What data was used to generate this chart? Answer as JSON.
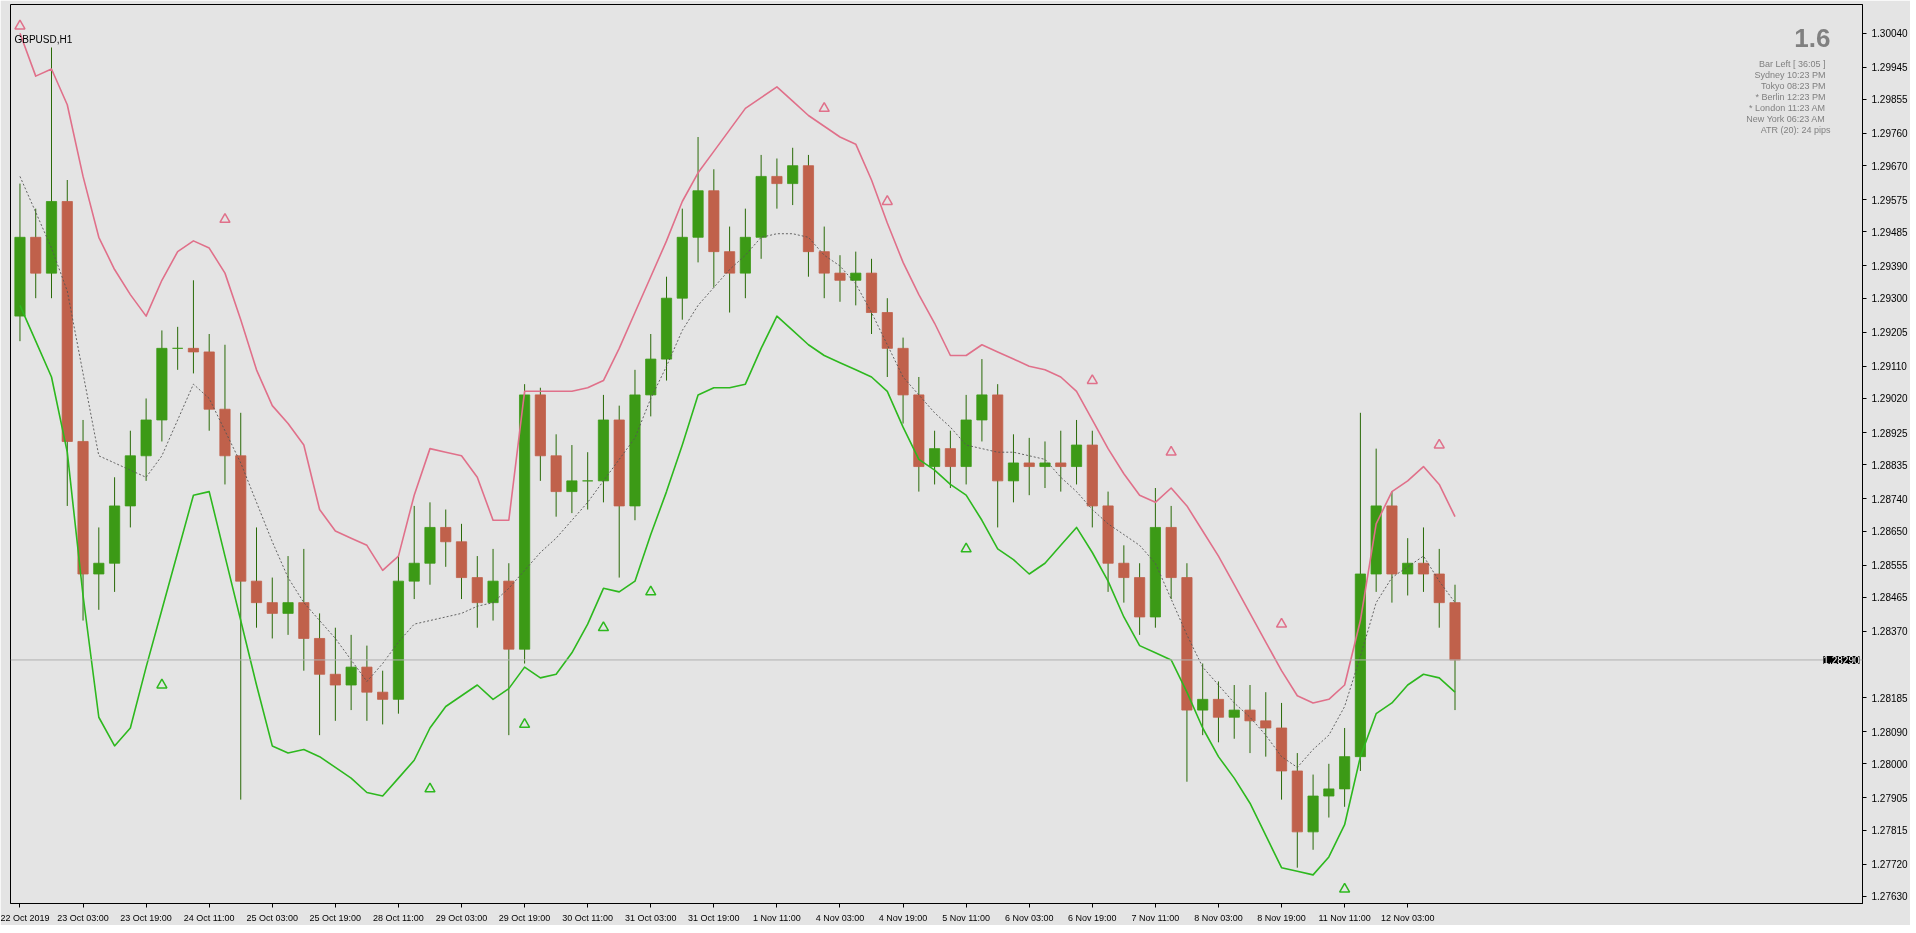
{
  "chart_data": {
    "type": "candlestick",
    "title": "GBPUSD,H1",
    "annotations": [
      "1.6",
      "Bar Left   [ 36:05 ]",
      "Sydney   10:23 PM",
      "Tokyo   08:23 PM",
      "* Berlin   12:23 PM",
      "* London   11:23 AM",
      "New York   06:23 AM",
      "ATR (20): 24 pips"
    ],
    "categories": [
      "22 Oct 2019",
      null,
      null,
      null,
      "23 Oct 03:00",
      null,
      null,
      null,
      "23 Oct 19:00",
      null,
      null,
      null,
      "24 Oct 11:00",
      null,
      null,
      null,
      "25 Oct 03:00",
      null,
      null,
      null,
      "25 Oct 19:00",
      null,
      null,
      null,
      "28 Oct 11:00",
      null,
      null,
      null,
      "29 Oct 03:00",
      null,
      null,
      null,
      "29 Oct 19:00",
      null,
      null,
      null,
      "30 Oct 11:00",
      null,
      null,
      null,
      "31 Oct 03:00",
      null,
      null,
      null,
      "31 Oct 19:00",
      null,
      null,
      null,
      "1 Nov 11:00",
      null,
      null,
      null,
      "4 Nov 03:00",
      null,
      null,
      null,
      "4 Nov 19:00",
      null,
      null,
      null,
      "5 Nov 11:00",
      null,
      null,
      null,
      "6 Nov 03:00",
      null,
      null,
      null,
      "6 Nov 19:00",
      null,
      null,
      null,
      "7 Nov 11:00",
      null,
      null,
      null,
      "8 Nov 03:00",
      null,
      null,
      null,
      "8 Nov 19:00",
      null,
      null,
      null,
      "11 Nov 11:00",
      null,
      null,
      null,
      "12 Nov 03:00",
      null,
      null,
      null
    ],
    "ohlc": [
      [
        1.2925,
        1.2962,
        1.2918,
        1.2947
      ],
      [
        1.2947,
        1.2955,
        1.293,
        1.2937
      ],
      [
        1.2937,
        1.3,
        1.293,
        1.2957
      ],
      [
        1.2957,
        1.2963,
        1.2872,
        1.289
      ],
      [
        1.289,
        1.2896,
        1.284,
        1.2853
      ],
      [
        1.2853,
        1.2866,
        1.2843,
        1.2856
      ],
      [
        1.2856,
        1.288,
        1.2848,
        1.2872
      ],
      [
        1.2872,
        1.2893,
        1.2866,
        1.2886
      ],
      [
        1.2886,
        1.2902,
        1.2879,
        1.2896
      ],
      [
        1.2896,
        1.2921,
        1.289,
        1.2916
      ],
      [
        1.2916,
        1.2922,
        1.291,
        1.2916
      ],
      [
        1.2916,
        1.2935,
        1.2909,
        1.2915
      ],
      [
        1.2915,
        1.292,
        1.2893,
        1.2899
      ],
      [
        1.2899,
        1.2917,
        1.2878,
        1.2886
      ],
      [
        1.2886,
        1.2898,
        1.279,
        1.2851
      ],
      [
        1.2851,
        1.2866,
        1.2838,
        1.2845
      ],
      [
        1.2845,
        1.2852,
        1.2835,
        1.2842
      ],
      [
        1.2842,
        1.2858,
        1.2836,
        1.2845
      ],
      [
        1.2845,
        1.286,
        1.2826,
        1.2835
      ],
      [
        1.2835,
        1.2842,
        1.2808,
        1.2825
      ],
      [
        1.2825,
        1.2838,
        1.2812,
        1.2822
      ],
      [
        1.2822,
        1.2836,
        1.2815,
        1.2827
      ],
      [
        1.2827,
        1.2833,
        1.2812,
        1.282
      ],
      [
        1.282,
        1.2826,
        1.2811,
        1.2818
      ],
      [
        1.2818,
        1.2858,
        1.2814,
        1.2851
      ],
      [
        1.2851,
        1.2872,
        1.2846,
        1.2856
      ],
      [
        1.2856,
        1.2873,
        1.285,
        1.2866
      ],
      [
        1.2866,
        1.2871,
        1.2855,
        1.2862
      ],
      [
        1.2862,
        1.2867,
        1.2846,
        1.2852
      ],
      [
        1.2852,
        1.2858,
        1.2838,
        1.2845
      ],
      [
        1.2845,
        1.286,
        1.284,
        1.2851
      ],
      [
        1.2851,
        1.2856,
        1.2808,
        1.2832
      ],
      [
        1.2832,
        1.2906,
        1.2828,
        1.2903
      ],
      [
        1.2903,
        1.2905,
        1.2879,
        1.2886
      ],
      [
        1.2886,
        1.2892,
        1.2869,
        1.2876
      ],
      [
        1.2876,
        1.2889,
        1.287,
        1.2879
      ],
      [
        1.2879,
        1.2887,
        1.2871,
        1.2879
      ],
      [
        1.2879,
        1.2903,
        1.2873,
        1.2896
      ],
      [
        1.2896,
        1.29,
        1.2852,
        1.2872
      ],
      [
        1.2872,
        1.291,
        1.2868,
        1.2903
      ],
      [
        1.2903,
        1.292,
        1.2897,
        1.2913
      ],
      [
        1.2913,
        1.2936,
        1.2907,
        1.293
      ],
      [
        1.293,
        1.2955,
        1.2924,
        1.2947
      ],
      [
        1.2947,
        1.2975,
        1.294,
        1.296
      ],
      [
        1.296,
        1.2966,
        1.2933,
        1.2943
      ],
      [
        1.2943,
        1.295,
        1.2926,
        1.2937
      ],
      [
        1.2937,
        1.2955,
        1.293,
        1.2947
      ],
      [
        1.2947,
        1.297,
        1.2941,
        1.2964
      ],
      [
        1.2964,
        1.2969,
        1.2955,
        1.2962
      ],
      [
        1.2962,
        1.2972,
        1.2956,
        1.2967
      ],
      [
        1.2967,
        1.297,
        1.2936,
        1.2943
      ],
      [
        1.2943,
        1.295,
        1.293,
        1.2937
      ],
      [
        1.2937,
        1.2942,
        1.2929,
        1.2935
      ],
      [
        1.2935,
        1.2943,
        1.2928,
        1.2937
      ],
      [
        1.2937,
        1.2941,
        1.292,
        1.2926
      ],
      [
        1.2926,
        1.293,
        1.2908,
        1.2916
      ],
      [
        1.2916,
        1.2919,
        1.2895,
        1.2903
      ],
      [
        1.2903,
        1.2908,
        1.2876,
        1.2883
      ],
      [
        1.2883,
        1.2893,
        1.2878,
        1.2888
      ],
      [
        1.2888,
        1.2893,
        1.2877,
        1.2883
      ],
      [
        1.2883,
        1.2903,
        1.2878,
        1.2896
      ],
      [
        1.2896,
        1.2913,
        1.289,
        1.2903
      ],
      [
        1.2903,
        1.2906,
        1.2866,
        1.2879
      ],
      [
        1.2879,
        1.2892,
        1.2873,
        1.2884
      ],
      [
        1.2884,
        1.2891,
        1.2875,
        1.2883
      ],
      [
        1.2883,
        1.289,
        1.2877,
        1.2884
      ],
      [
        1.2884,
        1.2893,
        1.2876,
        1.2883
      ],
      [
        1.2883,
        1.2896,
        1.2878,
        1.2889
      ],
      [
        1.2889,
        1.2893,
        1.2866,
        1.2872
      ],
      [
        1.2872,
        1.2876,
        1.2848,
        1.2856
      ],
      [
        1.2856,
        1.2861,
        1.2845,
        1.2852
      ],
      [
        1.2852,
        1.2856,
        1.2836,
        1.2841
      ],
      [
        1.2841,
        1.2877,
        1.2838,
        1.2866
      ],
      [
        1.2866,
        1.2872,
        1.2846,
        1.2852
      ],
      [
        1.2852,
        1.2856,
        1.2795,
        1.2815
      ],
      [
        1.2815,
        1.2828,
        1.2808,
        1.2818
      ],
      [
        1.2818,
        1.2823,
        1.2806,
        1.2813
      ],
      [
        1.2813,
        1.2822,
        1.2807,
        1.2815
      ],
      [
        1.2815,
        1.2822,
        1.2803,
        1.2812
      ],
      [
        1.2812,
        1.282,
        1.2802,
        1.281
      ],
      [
        1.281,
        1.2817,
        1.279,
        1.2798
      ],
      [
        1.2798,
        1.2803,
        1.2771,
        1.2781
      ],
      [
        1.2781,
        1.2797,
        1.2776,
        1.2791
      ],
      [
        1.2791,
        1.28,
        1.2785,
        1.2793
      ],
      [
        1.2793,
        1.281,
        1.2788,
        1.2802
      ],
      [
        1.2802,
        1.2898,
        1.2798,
        1.2853
      ],
      [
        1.2853,
        1.2888,
        1.2848,
        1.2872
      ],
      [
        1.2872,
        1.2876,
        1.2845,
        1.2853
      ],
      [
        1.2853,
        1.2863,
        1.2847,
        1.2856
      ],
      [
        1.2856,
        1.2866,
        1.2848,
        1.2853
      ],
      [
        1.2853,
        1.286,
        1.2838,
        1.2845
      ],
      [
        1.2845,
        1.285,
        1.2815,
        1.2829
      ]
    ],
    "colors": [
      "#3c9a16",
      "#c0614b",
      "#3c9a16",
      "#c0614b",
      "#c0614b",
      "#3c9a16",
      "#3c9a16",
      "#3c9a16",
      "#3c9a16",
      "#3c9a16",
      "#3c9a16",
      "#c0614b",
      "#c0614b",
      "#c0614b",
      "#c0614b",
      "#c0614b",
      "#c0614b",
      "#3c9a16",
      "#c0614b",
      "#c0614b",
      "#c0614b",
      "#3c9a16",
      "#c0614b",
      "#c0614b",
      "#3c9a16",
      "#3c9a16",
      "#3c9a16",
      "#c0614b",
      "#c0614b",
      "#c0614b",
      "#3c9a16",
      "#c0614b",
      "#3c9a16",
      "#c0614b",
      "#c0614b",
      "#3c9a16",
      "#3c9a16",
      "#3c9a16",
      "#c0614b",
      "#3c9a16",
      "#3c9a16",
      "#3c9a16",
      "#3c9a16",
      "#3c9a16",
      "#c0614b",
      "#c0614b",
      "#3c9a16",
      "#3c9a16",
      "#c0614b",
      "#3c9a16",
      "#c0614b",
      "#c0614b",
      "#c0614b",
      "#3c9a16",
      "#c0614b",
      "#c0614b",
      "#c0614b",
      "#c0614b",
      "#3c9a16",
      "#c0614b",
      "#3c9a16",
      "#3c9a16",
      "#c0614b",
      "#3c9a16",
      "#c0614b",
      "#3c9a16",
      "#c0614b",
      "#3c9a16",
      "#c0614b",
      "#c0614b",
      "#c0614b",
      "#c0614b",
      "#3c9a16",
      "#c0614b",
      "#c0614b",
      "#3c9a16",
      "#c0614b",
      "#3c9a16",
      "#c0614b",
      "#c0614b",
      "#c0614b",
      "#c0614b",
      "#3c9a16",
      "#3c9a16",
      "#3c9a16",
      "#3c9a16",
      "#3c9a16",
      "#c0614b",
      "#3c9a16",
      "#c0614b",
      "#c0614b",
      "#c0614b"
    ],
    "series": [
      {
        "type": "line",
        "color": "#e0708a",
        "values": [
          1.3004,
          1.2992,
          1.2994,
          1.2984,
          1.2964,
          1.2947,
          1.2938,
          1.2931,
          1.2925,
          1.2935,
          1.2943,
          1.2946,
          1.2944,
          1.2937,
          1.2924,
          1.291,
          1.29,
          1.2895,
          1.2889,
          1.2871,
          1.2865,
          1.2863,
          1.2861,
          1.2854,
          1.2858,
          1.2875,
          1.2888,
          1.2887,
          1.2886,
          1.288,
          1.2868,
          1.2868,
          1.2904,
          1.2904,
          1.2904,
          1.2904,
          1.2905,
          1.2907,
          1.2916,
          1.2926,
          1.2936,
          1.2946,
          1.2957,
          1.2965,
          1.2971,
          1.2977,
          1.2983,
          1.2986,
          1.2989,
          1.2985,
          1.2981,
          1.2978,
          1.2975,
          1.2973,
          1.2963,
          1.2951,
          1.294,
          1.2931,
          1.2923,
          1.2914,
          1.2914,
          1.2917,
          1.2915,
          1.2913,
          1.2911,
          1.291,
          1.2908,
          1.2904,
          1.2896,
          1.2888,
          1.2881,
          1.2875,
          1.2873,
          1.2877,
          1.2872,
          1.2865,
          1.2858,
          1.285,
          1.2842,
          1.2834,
          1.2826,
          1.2819,
          1.2817,
          1.2818,
          1.2822,
          1.284,
          1.2867,
          1.2876,
          1.2879,
          1.2883,
          1.2878,
          1.2869
        ]
      },
      {
        "type": "line",
        "color": "#2db81e",
        "values": [
          1.2928,
          1.2918,
          1.2908,
          1.2887,
          1.2847,
          1.2813,
          1.2805,
          1.281,
          1.2827,
          1.2843,
          1.2859,
          1.2875,
          1.2876,
          1.2858,
          1.284,
          1.2822,
          1.2805,
          1.2803,
          1.2804,
          1.2802,
          1.2799,
          1.2796,
          1.2792,
          1.2791,
          1.2796,
          1.2801,
          1.281,
          1.2816,
          1.2819,
          1.2822,
          1.2818,
          1.2821,
          1.2827,
          1.2824,
          1.2825,
          1.2831,
          1.2839,
          1.2849,
          1.2848,
          1.2851,
          1.2864,
          1.2876,
          1.2889,
          1.2903,
          1.2905,
          1.2905,
          1.2906,
          1.2916,
          1.2925,
          1.2921,
          1.2917,
          1.2914,
          1.2912,
          1.291,
          1.2908,
          1.2904,
          1.2894,
          1.2885,
          1.2882,
          1.2878,
          1.2875,
          1.2868,
          1.286,
          1.2857,
          1.2853,
          1.2856,
          1.2861,
          1.2866,
          1.2859,
          1.2851,
          1.2841,
          1.2833,
          1.2831,
          1.2829,
          1.282,
          1.281,
          1.2802,
          1.2796,
          1.2789,
          1.278,
          1.2771,
          1.277,
          1.2769,
          1.2774,
          1.2783,
          1.2802,
          1.2814,
          1.2817,
          1.2822,
          1.2825,
          1.2824,
          1.282
        ]
      },
      {
        "type": "line",
        "color": "#555555",
        "line_style": "dashed",
        "values": [
          1.2964,
          1.2954,
          1.2944,
          1.2932,
          1.2909,
          1.2886,
          1.2884,
          1.2882,
          1.288,
          1.2886,
          1.2896,
          1.2906,
          1.2902,
          1.2893,
          1.2884,
          1.2873,
          1.2862,
          1.2852,
          1.2845,
          1.284,
          1.2835,
          1.2829,
          1.2823,
          1.2828,
          1.2834,
          1.2839,
          1.284,
          1.2841,
          1.2842,
          1.2844,
          1.2845,
          1.2849,
          1.2854,
          1.2859,
          1.2863,
          1.2868,
          1.2873,
          1.2879,
          1.2885,
          1.2891,
          1.2902,
          1.2911,
          1.2921,
          1.2928,
          1.2933,
          1.2938,
          1.2942,
          1.2947,
          1.2948,
          1.2948,
          1.2947,
          1.2942,
          1.2939,
          1.2934,
          1.2926,
          1.2917,
          1.2908,
          1.2903,
          1.2898,
          1.2894,
          1.2889,
          1.2888,
          1.2887,
          1.2887,
          1.2886,
          1.2885,
          1.288,
          1.2876,
          1.2871,
          1.2867,
          1.2864,
          1.2861,
          1.2856,
          1.2846,
          1.2836,
          1.2827,
          1.2822,
          1.2817,
          1.2813,
          1.2808,
          1.2802,
          1.2799,
          1.2804,
          1.2808,
          1.2816,
          1.283,
          1.2845,
          1.2852,
          1.2855,
          1.2858,
          1.2851,
          1.2845
        ]
      },
      {
        "type": "scatter",
        "marker": "triangle",
        "color": "#e0708a",
        "values": [
          1.3006,
          null,
          null,
          null,
          null,
          null,
          null,
          null,
          null,
          null,
          null,
          null,
          null,
          1.2952,
          null,
          null,
          null,
          null,
          null,
          null,
          null,
          null,
          null,
          null,
          null,
          null,
          null,
          null,
          null,
          null,
          null,
          null,
          null,
          null,
          null,
          null,
          null,
          null,
          null,
          null,
          null,
          null,
          null,
          null,
          null,
          null,
          null,
          null,
          null,
          null,
          null,
          1.2983,
          null,
          null,
          null,
          1.2957,
          null,
          null,
          null,
          null,
          null,
          null,
          null,
          null,
          null,
          null,
          null,
          null,
          1.2907,
          null,
          null,
          null,
          null,
          1.2887,
          null,
          null,
          null,
          null,
          null,
          null,
          1.2839,
          null,
          null,
          null,
          null,
          null,
          null,
          null,
          null,
          null,
          1.2889,
          null
        ]
      },
      {
        "type": "scatter",
        "marker": "triangle",
        "color": "#2db81e",
        "values": [
          null,
          null,
          null,
          null,
          null,
          null,
          null,
          null,
          null,
          1.2822,
          null,
          null,
          null,
          null,
          null,
          null,
          null,
          null,
          null,
          null,
          null,
          null,
          null,
          null,
          null,
          null,
          1.2793,
          null,
          null,
          null,
          null,
          null,
          1.2811,
          null,
          null,
          null,
          null,
          1.2838,
          null,
          null,
          1.2848,
          null,
          null,
          null,
          null,
          null,
          null,
          null,
          null,
          null,
          null,
          null,
          null,
          null,
          null,
          null,
          null,
          null,
          null,
          null,
          1.286,
          null,
          null,
          null,
          null,
          null,
          null,
          null,
          null,
          null,
          null,
          null,
          null,
          null,
          null,
          null,
          null,
          null,
          null,
          null,
          null,
          null,
          null,
          null,
          1.2765,
          null,
          null,
          null,
          null,
          null,
          null,
          null
        ]
      }
    ],
    "ref_lines": [
      {
        "axis": "y",
        "value": 1.2829,
        "label": "1.28290",
        "color": "#b0b0b0"
      }
    ],
    "ylim": [
      1.2761,
      1.3012
    ],
    "yticks": [
      {
        "value": 1.2763,
        "label": "1.27630"
      },
      {
        "value": 1.2772,
        "label": "1.27720"
      },
      {
        "value": 1.27815,
        "label": "1.27815"
      },
      {
        "value": 1.27905,
        "label": "1.27905"
      },
      {
        "value": 1.28,
        "label": "1.28000"
      },
      {
        "value": 1.2809,
        "label": "1.28090"
      },
      {
        "value": 1.28185,
        "label": "1.28185"
      },
      {
        "value": 1.2837,
        "label": "1.28370"
      },
      {
        "value": 1.28465,
        "label": "1.28465"
      },
      {
        "value": 1.28555,
        "label": "1.28555"
      },
      {
        "value": 1.2865,
        "label": "1.28650"
      },
      {
        "value": 1.2874,
        "label": "1.28740"
      },
      {
        "value": 1.28835,
        "label": "1.28835"
      },
      {
        "value": 1.28925,
        "label": "1.28925"
      },
      {
        "value": 1.2902,
        "label": "1.29020"
      },
      {
        "value": 1.2911,
        "label": "1.29110"
      },
      {
        "value": 1.29205,
        "label": "1.29205"
      },
      {
        "value": 1.293,
        "label": "1.29300"
      },
      {
        "value": 1.2939,
        "label": "1.29390"
      },
      {
        "value": 1.29485,
        "label": "1.29485"
      },
      {
        "value": 1.29575,
        "label": "1.29575"
      },
      {
        "value": 1.2967,
        "label": "1.29670"
      },
      {
        "value": 1.2976,
        "label": "1.29760"
      },
      {
        "value": 1.29855,
        "label": "1.29855"
      },
      {
        "value": 1.29945,
        "label": "1.29945"
      },
      {
        "value": 1.3004,
        "label": "1.30040"
      }
    ]
  }
}
